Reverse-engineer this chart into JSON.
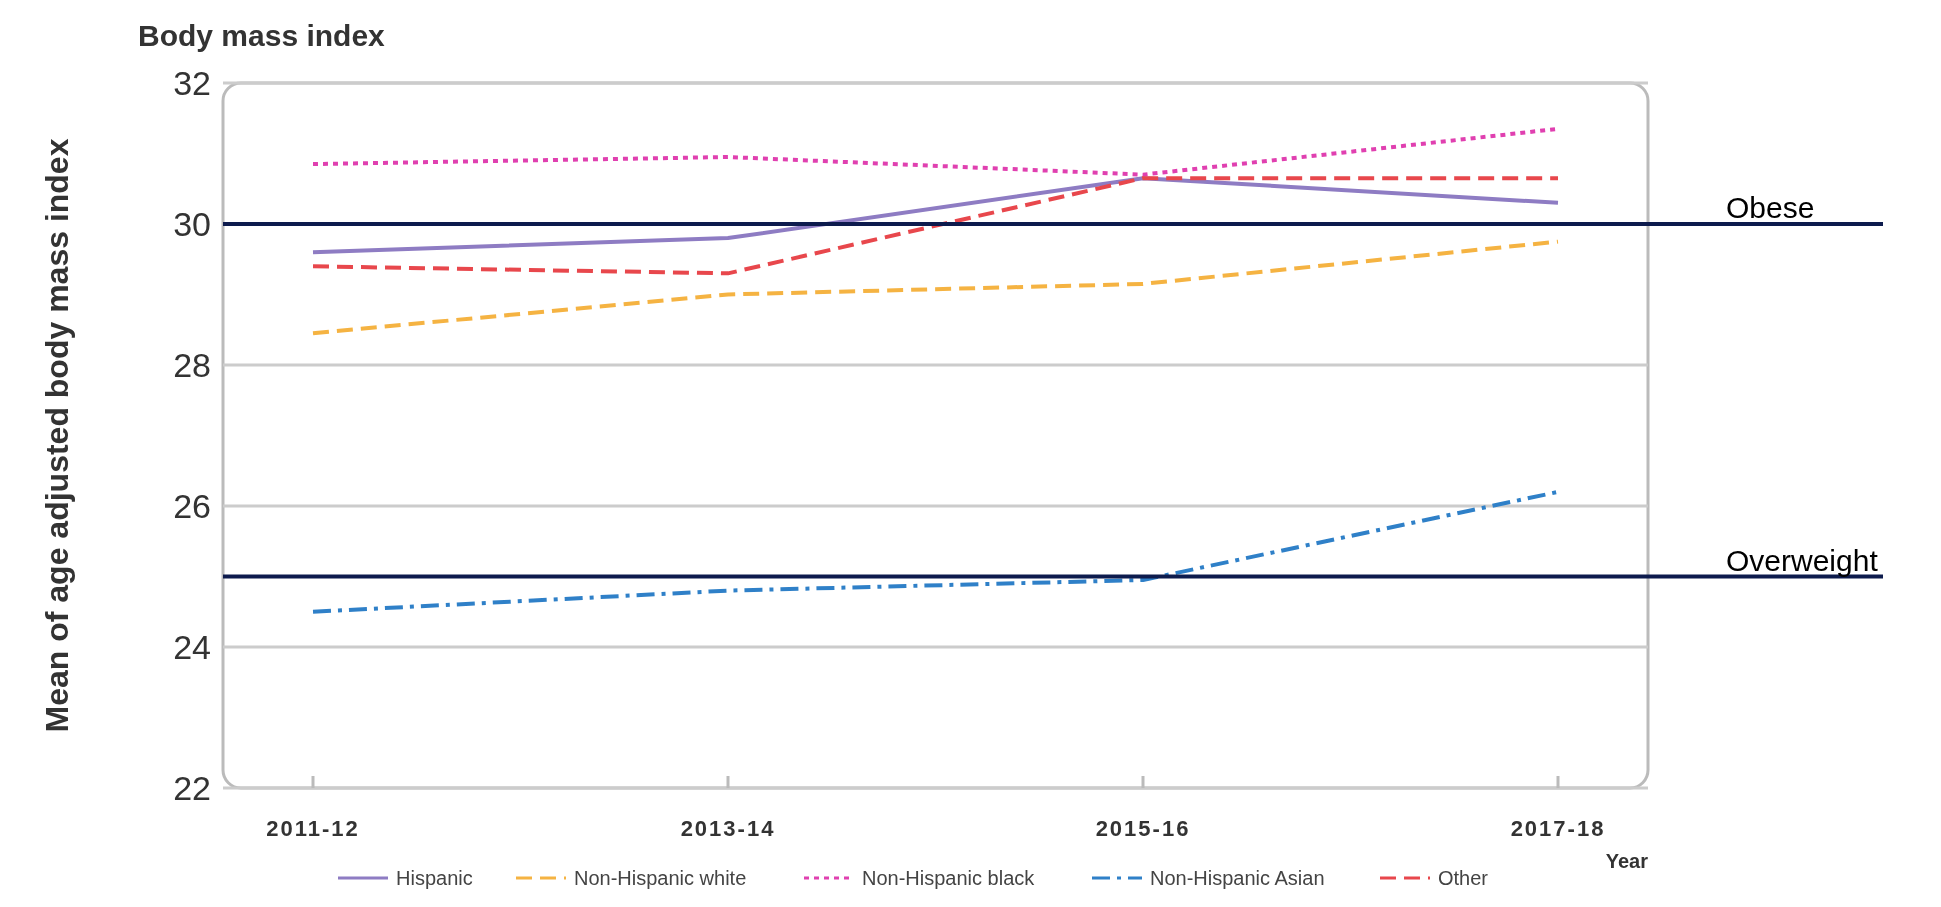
{
  "chart_data": {
    "type": "line",
    "title": "Body mass index",
    "xlabel": "Year",
    "ylabel": "Mean of age adjusted body mass index",
    "categories": [
      "2011-12",
      "2013-14",
      "2015-16",
      "2017-18"
    ],
    "series": [
      {
        "name": "Hispanic",
        "color": "#8e7cc3",
        "line_style": "solid",
        "values": [
          29.6,
          29.8,
          30.65,
          30.3
        ]
      },
      {
        "name": "Non-Hispanic white",
        "color": "#f5b342",
        "line_style": "dashed",
        "values": [
          28.45,
          29.0,
          29.15,
          29.75
        ]
      },
      {
        "name": "Non-Hispanic black",
        "color": "#e040b0",
        "line_style": "dotted",
        "values": [
          30.85,
          30.95,
          30.7,
          31.35
        ]
      },
      {
        "name": "Non-Hispanic Asian",
        "color": "#2f80c8",
        "line_style": "dashdot",
        "values": [
          24.5,
          24.8,
          24.95,
          26.2
        ]
      },
      {
        "name": "Other",
        "color": "#e8474c",
        "line_style": "dashed",
        "values": [
          29.4,
          29.3,
          30.65,
          30.65
        ]
      }
    ],
    "ylim": [
      22,
      32
    ],
    "yticks": [
      22,
      24,
      26,
      28,
      30,
      32
    ],
    "grid": "y",
    "legend": "bottom",
    "ref_lines": [
      {
        "axis": "y",
        "value": 30,
        "label": "Obese",
        "color": "#0d1b4d"
      },
      {
        "axis": "y",
        "value": 25,
        "label": "Overweight",
        "color": "#0d1b4d"
      }
    ]
  }
}
